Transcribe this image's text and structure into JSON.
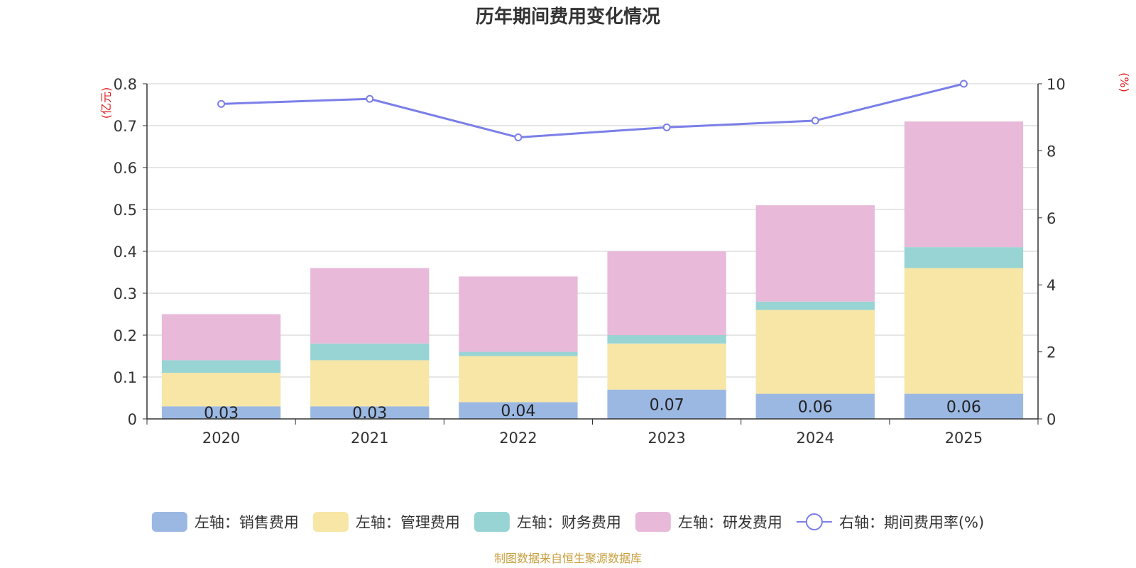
{
  "chart_data": {
    "type": "bar",
    "title": "历年期间费用变化情况",
    "categories": [
      "2020",
      "2021",
      "2022",
      "2023",
      "2024",
      "2025"
    ],
    "left_axis": {
      "label": "(亿元)",
      "min": 0,
      "max": 0.8,
      "ticks": [
        "0",
        "0.1",
        "0.2",
        "0.3",
        "0.4",
        "0.5",
        "0.6",
        "0.7",
        "0.8"
      ]
    },
    "right_axis": {
      "label": "(%)",
      "min": 0,
      "max": 10,
      "ticks": [
        "0",
        "2",
        "4",
        "6",
        "8",
        "10"
      ]
    },
    "series": [
      {
        "name": "左轴：销售费用",
        "type": "bar",
        "color": "#9bb8e3",
        "values": [
          0.03,
          0.03,
          0.04,
          0.07,
          0.06,
          0.06
        ],
        "labels": [
          "0.03",
          "0.03",
          "0.04",
          "0.07",
          "0.06",
          "0.06"
        ]
      },
      {
        "name": "左轴：管理费用",
        "type": "bar",
        "color": "#f7e6a6",
        "values": [
          0.08,
          0.11,
          0.11,
          0.11,
          0.2,
          0.3
        ]
      },
      {
        "name": "左轴：财务费用",
        "type": "bar",
        "color": "#98d4d4",
        "values": [
          0.03,
          0.04,
          0.01,
          0.02,
          0.02,
          0.05
        ]
      },
      {
        "name": "左轴：研发费用",
        "type": "bar",
        "color": "#e8b9d9",
        "values": [
          0.11,
          0.18,
          0.18,
          0.2,
          0.23,
          0.3
        ]
      },
      {
        "name": "右轴：期间费用率(%)",
        "type": "line",
        "color": "#7b7fe8",
        "values": [
          9.4,
          9.55,
          8.4,
          8.7,
          8.9,
          10.0
        ]
      }
    ],
    "legend": "bottom"
  },
  "footer": {
    "source": "制图数据来自恒生聚源数据库"
  },
  "colors": {
    "axis_label": "#e02020",
    "footer": "#c8a040",
    "grid": "#cccccc",
    "axis": "#333333"
  }
}
